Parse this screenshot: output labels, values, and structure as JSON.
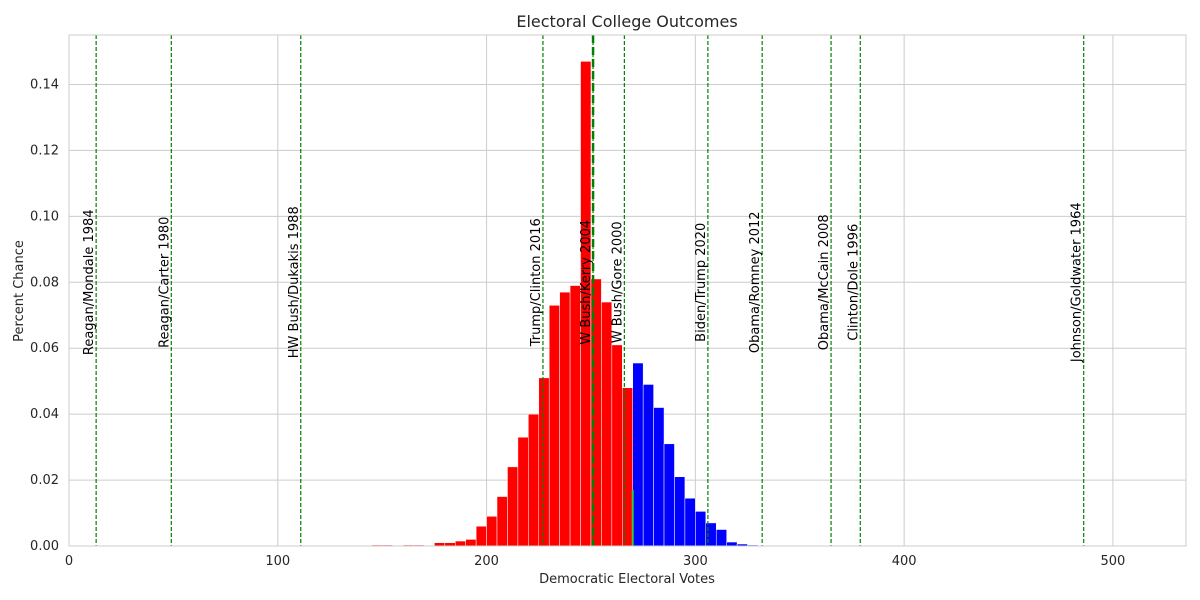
{
  "chart_data": {
    "type": "bar",
    "title": "Electoral College Outcomes",
    "xlabel": "Democratic Electoral Votes",
    "ylabel": "Percent Chance",
    "xlim": [
      0,
      535
    ],
    "ylim": [
      0,
      0.155
    ],
    "xticks": [
      0,
      100,
      200,
      300,
      400,
      500
    ],
    "yticks": [
      0.0,
      0.02,
      0.04,
      0.06,
      0.08,
      0.1,
      0.12,
      0.14
    ],
    "grid": true,
    "bin_width": 5,
    "threshold": 270,
    "colors": {
      "republican_win": "#ff0000",
      "democratic_win": "#0000ff",
      "reference_line": "#008000",
      "median_line": "#008000"
    },
    "bins": [
      {
        "x": 145,
        "y": 0.0003
      },
      {
        "x": 150,
        "y": 0.0003
      },
      {
        "x": 160,
        "y": 0.0003
      },
      {
        "x": 165,
        "y": 0.0003
      },
      {
        "x": 175,
        "y": 0.001
      },
      {
        "x": 180,
        "y": 0.001
      },
      {
        "x": 185,
        "y": 0.0015
      },
      {
        "x": 190,
        "y": 0.002
      },
      {
        "x": 195,
        "y": 0.006
      },
      {
        "x": 200,
        "y": 0.009
      },
      {
        "x": 205,
        "y": 0.015
      },
      {
        "x": 210,
        "y": 0.024
      },
      {
        "x": 215,
        "y": 0.033
      },
      {
        "x": 220,
        "y": 0.04
      },
      {
        "x": 225,
        "y": 0.051
      },
      {
        "x": 230,
        "y": 0.073
      },
      {
        "x": 235,
        "y": 0.077
      },
      {
        "x": 240,
        "y": 0.079
      },
      {
        "x": 245,
        "y": 0.147
      },
      {
        "x": 250,
        "y": 0.081
      },
      {
        "x": 255,
        "y": 0.074
      },
      {
        "x": 260,
        "y": 0.061
      },
      {
        "x": 265,
        "y": 0.048
      },
      {
        "x": 270,
        "y": 0.0555
      },
      {
        "x": 275,
        "y": 0.049
      },
      {
        "x": 280,
        "y": 0.042
      },
      {
        "x": 285,
        "y": 0.031
      },
      {
        "x": 290,
        "y": 0.021
      },
      {
        "x": 295,
        "y": 0.0145
      },
      {
        "x": 300,
        "y": 0.0105
      },
      {
        "x": 305,
        "y": 0.007
      },
      {
        "x": 310,
        "y": 0.005
      },
      {
        "x": 315,
        "y": 0.0012
      },
      {
        "x": 320,
        "y": 0.0006
      },
      {
        "x": 325,
        "y": 0.0003
      }
    ],
    "median": 251,
    "reference_lines": [
      {
        "x": 13,
        "label": "Reagan/Mondale 1984"
      },
      {
        "x": 49,
        "label": "Reagan/Carter 1980"
      },
      {
        "x": 111,
        "label": "HW Bush/Dukakis 1988"
      },
      {
        "x": 227,
        "label": "Trump/Clinton 2016"
      },
      {
        "x": 251,
        "label": "W Bush/Kerry 2004"
      },
      {
        "x": 266,
        "label": "W Bush/Gore 2000"
      },
      {
        "x": 306,
        "label": "Biden/Trump 2020"
      },
      {
        "x": 332,
        "label": "Obama/Romney 2012"
      },
      {
        "x": 365,
        "label": "Obama/McCain 2008"
      },
      {
        "x": 379,
        "label": "Clinton/Dole 1996"
      },
      {
        "x": 486,
        "label": "Johnson/Goldwater 1964"
      }
    ]
  }
}
